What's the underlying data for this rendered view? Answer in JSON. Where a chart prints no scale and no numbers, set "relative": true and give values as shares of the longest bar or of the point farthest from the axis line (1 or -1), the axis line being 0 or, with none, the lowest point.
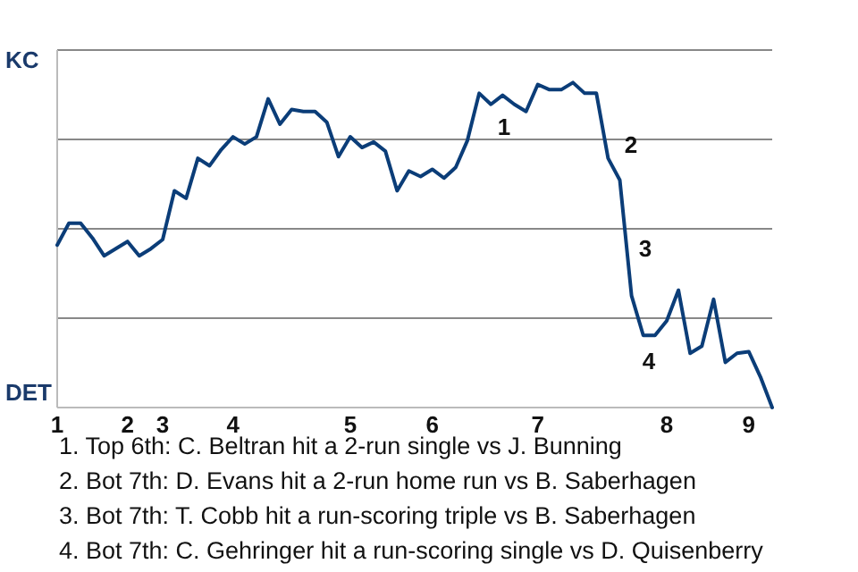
{
  "chart_data": {
    "type": "line",
    "relative": true,
    "categories": [
      "1",
      null,
      null,
      null,
      null,
      null,
      "2",
      null,
      null,
      "3",
      null,
      null,
      null,
      null,
      null,
      "4",
      null,
      null,
      null,
      null,
      null,
      null,
      null,
      null,
      null,
      "5",
      null,
      null,
      null,
      null,
      null,
      null,
      "6",
      null,
      null,
      null,
      null,
      null,
      null,
      null,
      null,
      "7",
      null,
      null,
      null,
      null,
      null,
      null,
      null,
      null,
      null,
      null,
      "8",
      null,
      null,
      null,
      null,
      null,
      null,
      "9",
      null,
      null
    ],
    "series": [
      {
        "color": "#0b3d78",
        "values": [
          0.5,
          0.567,
          0.567,
          0.522,
          0.467,
          0.489,
          0.511,
          0.467,
          0.489,
          0.517,
          0.667,
          0.644,
          0.767,
          0.744,
          0.794,
          0.833,
          0.811,
          0.833,
          0.95,
          0.872,
          0.917,
          0.911,
          0.911,
          0.878,
          0.772,
          0.833,
          0.8,
          0.817,
          0.789,
          0.667,
          0.728,
          0.711,
          0.733,
          0.706,
          0.739,
          0.822,
          0.967,
          0.933,
          0.961,
          0.933,
          0.911,
          0.994,
          0.978,
          0.978,
          1,
          0.967,
          0.967,
          0.767,
          0.7,
          0.344,
          0.222,
          0.222,
          0.267,
          0.361,
          0.167,
          0.189,
          0.333,
          0.139,
          0.167,
          0.172,
          0.094,
          0
        ]
      }
    ],
    "grid": "y",
    "marker": "none",
    "line_style": "solid",
    "annotations": [
      "KC",
      "DET",
      "1",
      "2",
      "3",
      "4",
      "1. Top 6th: C. Beltran hit a 2-run single vs J. Bunning",
      "2. Bot 7th: D. Evans hit a 2-run home run vs B. Saberhagen",
      "3. Bot 7th: T. Cobb hit a run-scoring triple vs B. Saberhagen",
      "4. Bot 7th: C. Gehringer hit a run-scoring single vs D. Quisenberry"
    ]
  }
}
